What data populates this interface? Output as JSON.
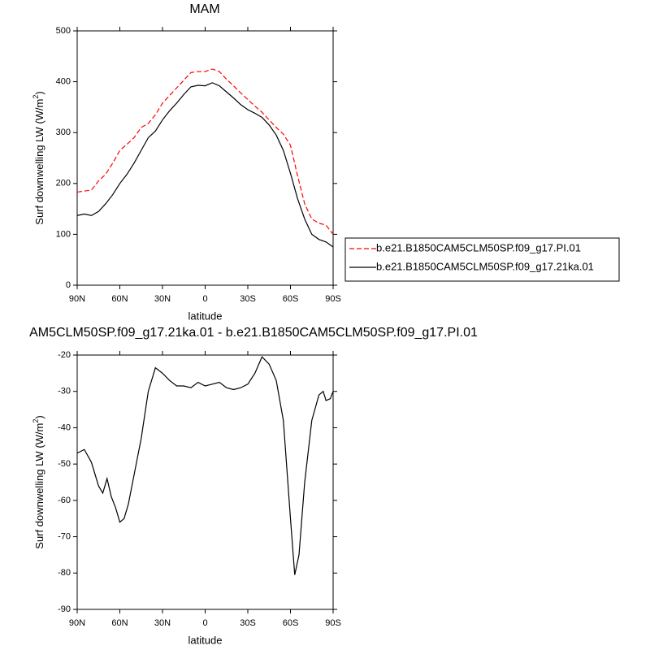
{
  "chart_data": [
    {
      "type": "line",
      "title": "MAM",
      "ylabel": {
        "text": "Surf downwelling LW (W/m",
        "sup": "2",
        "end": ")"
      },
      "xlabel": "latitude",
      "x": [
        90,
        85,
        80,
        75,
        70,
        65,
        60,
        55,
        50,
        45,
        40,
        35,
        30,
        25,
        20,
        15,
        10,
        5,
        0,
        -5,
        -10,
        -15,
        -20,
        -25,
        -30,
        -35,
        -40,
        -45,
        -50,
        -55,
        -60,
        -65,
        -70,
        -75,
        -80,
        -85,
        -90
      ],
      "series": [
        {
          "name": "b.e21.B1850CAM5CLM50SP.f09_g17.PI.01",
          "color": "#ff0000",
          "dash": true,
          "values": [
            183,
            185,
            187,
            205,
            218,
            240,
            265,
            277,
            290,
            310,
            318,
            335,
            358,
            373,
            388,
            403,
            418,
            420,
            420,
            425,
            420,
            405,
            392,
            378,
            365,
            352,
            340,
            325,
            310,
            297,
            275,
            215,
            160,
            130,
            122,
            118,
            100
          ]
        },
        {
          "name": "b.e21.B1850CAM5CLM50SP.f09_g17.21ka.01",
          "color": "#000000",
          "dash": false,
          "values": [
            137,
            140,
            137,
            145,
            160,
            178,
            200,
            218,
            240,
            265,
            290,
            303,
            325,
            343,
            358,
            375,
            390,
            393,
            392,
            398,
            392,
            380,
            368,
            355,
            345,
            338,
            330,
            315,
            295,
            265,
            220,
            170,
            130,
            100,
            90,
            85,
            75
          ]
        }
      ],
      "xlim": [
        90,
        -90
      ],
      "xticks": [
        {
          "value": 90,
          "label": "90N"
        },
        {
          "value": 60,
          "label": "60N"
        },
        {
          "value": 30,
          "label": "30N"
        },
        0,
        {
          "value": -30,
          "label": "30S"
        },
        {
          "value": -60,
          "label": "60S"
        },
        {
          "value": -90,
          "label": "90S"
        }
      ],
      "ylim": [
        0,
        500
      ],
      "yticks": [
        0,
        100,
        200,
        300,
        400,
        500
      ],
      "legend": "right"
    },
    {
      "type": "line",
      "title": "AM5CLM50SP.f09_g17.21ka.01 - b.e21.B1850CAM5CLM50SP.f09_g17.PI.01",
      "ylabel": {
        "text": "Surf downwelling LW (W/m",
        "sup": "2",
        "end": ")"
      },
      "xlabel": "latitude",
      "x": [
        90,
        85,
        80,
        75,
        72,
        69,
        66,
        63,
        60,
        57,
        54,
        50,
        45,
        40,
        35,
        30,
        25,
        20,
        15,
        10,
        5,
        0,
        -5,
        -10,
        -15,
        -20,
        -25,
        -30,
        -35,
        -40,
        -45,
        -50,
        -55,
        -60,
        -63,
        -66,
        -70,
        -75,
        -80,
        -83,
        -85,
        -88,
        -90
      ],
      "series": [
        {
          "color": "#000000",
          "dash": false,
          "values": [
            -47,
            -46,
            -49.5,
            -56,
            -58,
            -54,
            -59,
            -62,
            -66,
            -65,
            -61,
            -53,
            -43,
            -30,
            -23.5,
            -25,
            -27,
            -28.5,
            -28.5,
            -29,
            -27.5,
            -28.5,
            -28,
            -27.5,
            -29,
            -29.5,
            -29,
            -28,
            -25,
            -20.5,
            -22.5,
            -27,
            -38,
            -65,
            -80.5,
            -75,
            -55,
            -38,
            -31,
            -30,
            -32.5,
            -32,
            -30
          ]
        }
      ],
      "xlim": [
        90,
        -90
      ],
      "xticks": [
        {
          "value": 90,
          "label": "90N"
        },
        {
          "value": 60,
          "label": "60N"
        },
        {
          "value": 30,
          "label": "30N"
        },
        0,
        {
          "value": -30,
          "label": "30S"
        },
        {
          "value": -60,
          "label": "60S"
        },
        {
          "value": -90,
          "label": "90S"
        }
      ],
      "ylim": [
        -90,
        -20
      ],
      "yticks": [
        -90,
        -80,
        -70,
        -60,
        -50,
        -40,
        -30,
        -20
      ]
    }
  ]
}
